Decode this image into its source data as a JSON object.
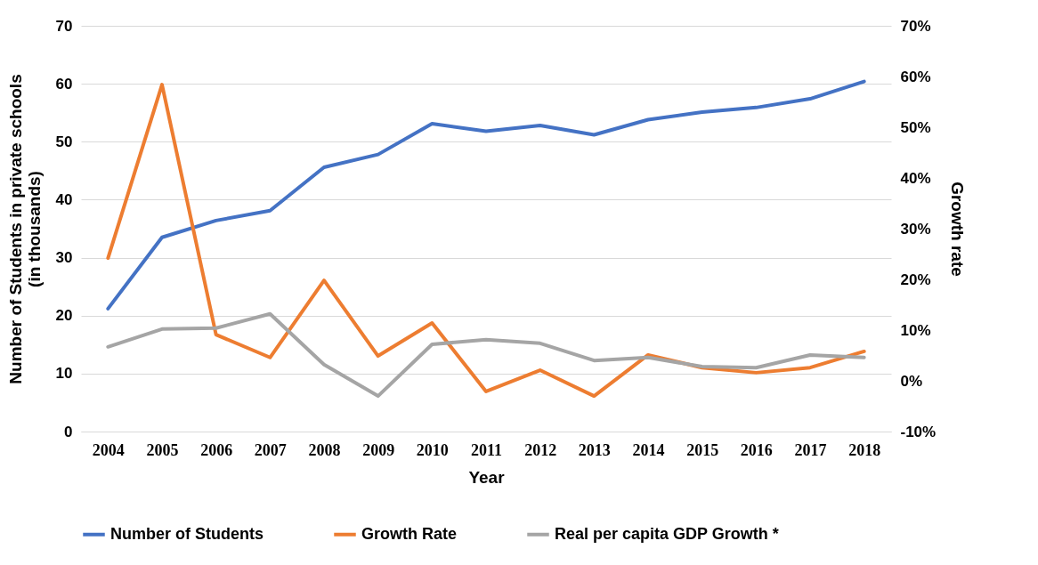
{
  "chart_data": {
    "type": "line",
    "xlabel": "Year",
    "ylabel": "Number of Students in private schools\n(in thousands)",
    "y2label": "Growth rate",
    "categories": [
      "2004",
      "2005",
      "2006",
      "2007",
      "2008",
      "2009",
      "2010",
      "2011",
      "2012",
      "2013",
      "2014",
      "2015",
      "2016",
      "2017",
      "2018"
    ],
    "series": [
      {
        "name": "Number of Students",
        "color": "#4472c4",
        "values": [
          21.2,
          33.5,
          36.4,
          38.1,
          45.6,
          47.8,
          53.1,
          51.8,
          52.8,
          51.2,
          53.8,
          55.1,
          55.9,
          57.4,
          60.4
        ]
      },
      {
        "name": "Growth Rate",
        "color": "#ed7d31",
        "axis": "y2",
        "values": [
          24.2,
          58.4,
          9.1,
          4.6,
          19.8,
          4.9,
          11.4,
          -2.1,
          2.1,
          -3.0,
          5.1,
          2.6,
          1.6,
          2.6,
          5.8
        ]
      },
      {
        "name": "Real per capita GDP Growth *",
        "color": "#a5a5a5",
        "axis": "y2",
        "values": [
          6.7,
          10.2,
          10.4,
          13.2,
          3.2,
          -3.0,
          7.2,
          8.1,
          7.4,
          4.0,
          4.6,
          2.8,
          2.6,
          5.1,
          4.6
        ]
      }
    ],
    "ylim": [
      0,
      70
    ],
    "yticks": [
      0,
      10,
      20,
      30,
      40,
      50,
      60,
      70
    ],
    "y2lim": [
      -10,
      70
    ],
    "y2ticks": [
      {
        "value": -10,
        "label": "-10%"
      },
      {
        "value": 0,
        "label": "0%"
      },
      {
        "value": 10,
        "label": "10%"
      },
      {
        "value": 20,
        "label": "20%"
      },
      {
        "value": 30,
        "label": "30%"
      },
      {
        "value": 40,
        "label": "40%"
      },
      {
        "value": 50,
        "label": "50%"
      },
      {
        "value": 60,
        "label": "60%"
      },
      {
        "value": 70,
        "label": "70%"
      }
    ],
    "grid": "y",
    "legend": "bottom",
    "marker": "none",
    "line_style": "solid"
  }
}
